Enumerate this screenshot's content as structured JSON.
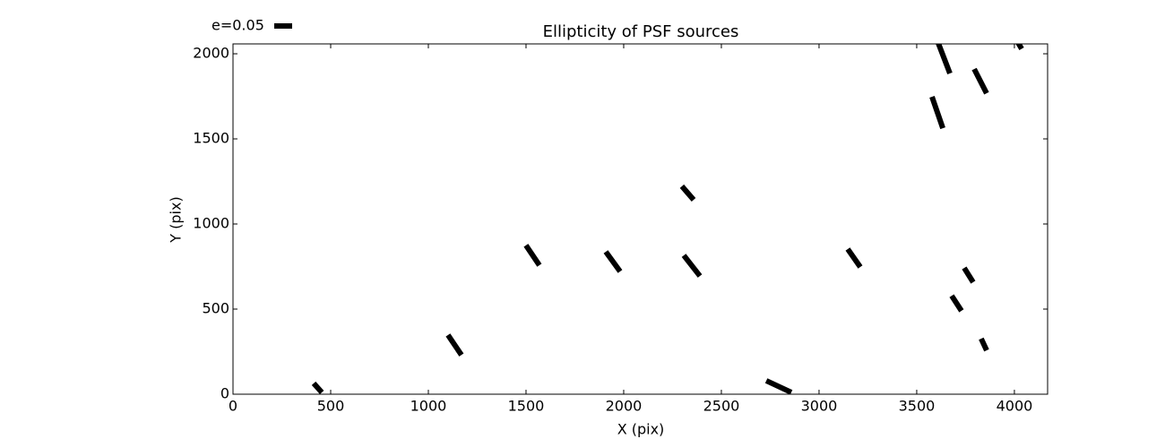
{
  "chart_data": {
    "type": "whisker",
    "title": "Ellipticity of PSF sources",
    "x_label": "X (pix)",
    "y_label": "Y (pix)",
    "x": [
      434,
      1135,
      1534,
      1945,
      2328,
      2349,
      2794,
      3179,
      3640,
      3826,
      3606,
      4028,
      3766,
      3704,
      3844
    ],
    "y": [
      37,
      289,
      816,
      779,
      1182,
      755,
      45,
      800,
      1974,
      1839,
      1655,
      2047,
      700,
      534,
      292
    ],
    "e": [
      0.034,
      0.067,
      0.067,
      0.068,
      0.05,
      0.073,
      0.077,
      0.061,
      0.091,
      0.076,
      0.093,
      0.02,
      0.047,
      0.05,
      0.036
    ],
    "angle": [
      -48,
      -56,
      -56,
      -54,
      -49,
      -52,
      -25,
      -55,
      -69,
      -63,
      -71,
      -60,
      -58,
      -57,
      -65
    ],
    "color": "#000000",
    "key": {
      "value": 0.05,
      "label": "e=0.05"
    },
    "xlim": [
      0,
      4170
    ],
    "ylim": [
      0,
      2058
    ],
    "xticks": [
      0,
      500,
      1000,
      1500,
      2000,
      2500,
      3000,
      3500,
      4000
    ],
    "yticks": [
      0,
      500,
      1000,
      1500,
      2000
    ]
  }
}
